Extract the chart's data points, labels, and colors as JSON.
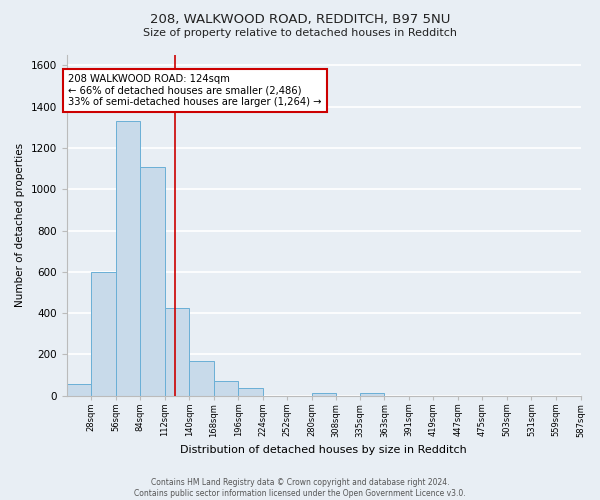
{
  "title": "208, WALKWOOD ROAD, REDDITCH, B97 5NU",
  "subtitle": "Size of property relative to detached houses in Redditch",
  "xlabel": "Distribution of detached houses by size in Redditch",
  "ylabel": "Number of detached properties",
  "bin_edges": [
    0,
    28,
    56,
    84,
    112,
    140,
    168,
    196,
    224,
    252,
    280,
    308,
    335,
    363,
    391,
    419,
    447,
    475,
    503,
    531,
    559,
    587
  ],
  "bar_heights": [
    55,
    600,
    1330,
    1110,
    425,
    170,
    70,
    35,
    0,
    0,
    15,
    0,
    15,
    0,
    0,
    0,
    0,
    0,
    0,
    0,
    0
  ],
  "bar_color": "#c8daea",
  "bar_edgecolor": "#6aafd6",
  "property_size": 124,
  "vline_color": "#cc0000",
  "annotation_line1": "208 WALKWOOD ROAD: 124sqm",
  "annotation_line2": "← 66% of detached houses are smaller (2,486)",
  "annotation_line3": "33% of semi-detached houses are larger (1,264) →",
  "annotation_box_edgecolor": "#cc0000",
  "annotation_box_facecolor": "#ffffff",
  "ylim": [
    0,
    1650
  ],
  "yticks": [
    0,
    200,
    400,
    600,
    800,
    1000,
    1200,
    1400,
    1600
  ],
  "footer_line1": "Contains HM Land Registry data © Crown copyright and database right 2024.",
  "footer_line2": "Contains public sector information licensed under the Open Government Licence v3.0.",
  "background_color": "#e8eef4",
  "plot_bg_color": "#e8eef4",
  "grid_color": "#ffffff"
}
